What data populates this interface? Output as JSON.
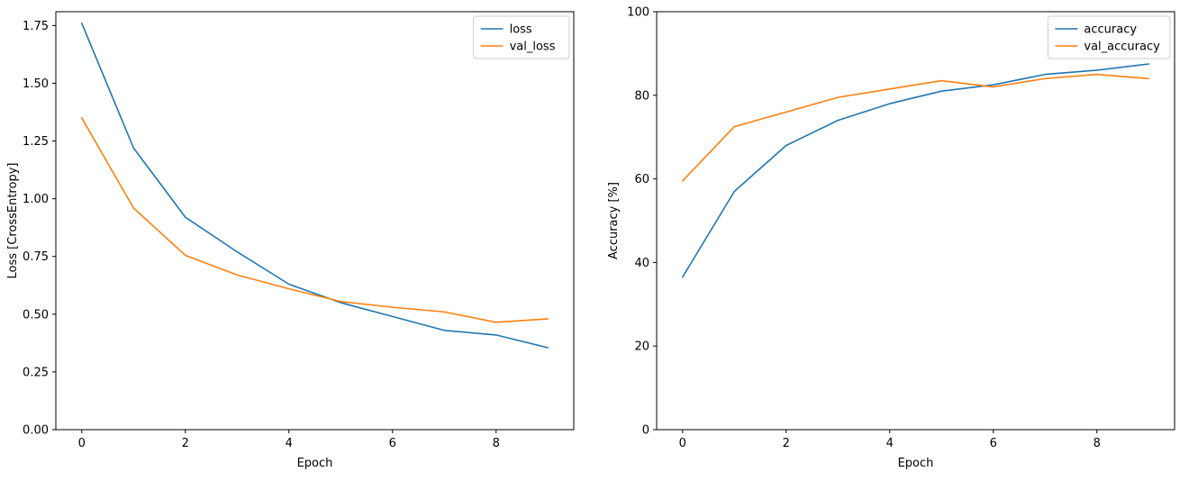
{
  "figure": {
    "background": "#ffffff",
    "spine_color": "#000000",
    "tick_color": "#000000",
    "text_color": "#000000",
    "legend_border_color": "#cccccc",
    "legend_background": "#ffffff"
  },
  "chart_data": [
    {
      "type": "line",
      "name": "loss",
      "title": "",
      "xlabel": "Epoch",
      "ylabel": "Loss [CrossEntropy]",
      "x": [
        0,
        1,
        2,
        3,
        4,
        5,
        6,
        7,
        8,
        9
      ],
      "series": [
        {
          "name": "loss",
          "color": "#1f77b4",
          "values": [
            1.76,
            1.22,
            0.92,
            0.77,
            0.63,
            0.55,
            0.49,
            0.43,
            0.41,
            0.355
          ]
        },
        {
          "name": "val_loss",
          "color": "#ff7f0e",
          "values": [
            1.35,
            0.96,
            0.755,
            0.67,
            0.61,
            0.555,
            0.53,
            0.51,
            0.465,
            0.48
          ]
        }
      ],
      "xlim": [
        -0.5,
        9.5
      ],
      "ylim": [
        0,
        1.81
      ],
      "xticks": [
        0,
        2,
        4,
        6,
        8
      ],
      "xtick_labels": [
        "0",
        "2",
        "4",
        "6",
        "8"
      ],
      "yticks": [
        0,
        0.25,
        0.5,
        0.75,
        1.0,
        1.25,
        1.5,
        1.75
      ],
      "ytick_labels": [
        "0.00",
        "0.25",
        "0.50",
        "0.75",
        "1.00",
        "1.25",
        "1.50",
        "1.75"
      ],
      "legend": [
        "loss",
        "val_loss"
      ],
      "legend_position": "top-right",
      "grid": false
    },
    {
      "type": "line",
      "name": "accuracy",
      "title": "",
      "xlabel": "Epoch",
      "ylabel": "Accuracy [%]",
      "x": [
        0,
        1,
        2,
        3,
        4,
        5,
        6,
        7,
        8,
        9
      ],
      "series": [
        {
          "name": "accuracy",
          "color": "#1f77b4",
          "values": [
            36.5,
            57,
            68,
            74,
            78,
            81,
            82.5,
            85,
            86,
            87.5
          ]
        },
        {
          "name": "val_accuracy",
          "color": "#ff7f0e",
          "values": [
            59.5,
            72.5,
            76,
            79.5,
            81.5,
            83.5,
            82,
            84,
            85,
            84
          ]
        }
      ],
      "xlim": [
        -0.5,
        9.5
      ],
      "ylim": [
        0,
        100
      ],
      "xticks": [
        0,
        2,
        4,
        6,
        8
      ],
      "xtick_labels": [
        "0",
        "2",
        "4",
        "6",
        "8"
      ],
      "yticks": [
        0,
        20,
        40,
        60,
        80,
        100
      ],
      "ytick_labels": [
        "0",
        "20",
        "40",
        "60",
        "80",
        "100"
      ],
      "legend": [
        "accuracy",
        "val_accuracy"
      ],
      "legend_position": "top-right",
      "grid": false
    }
  ]
}
